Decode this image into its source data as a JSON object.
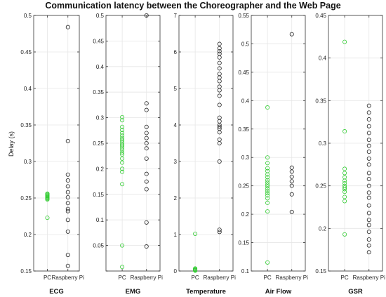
{
  "figure": {
    "title": "Communication latency between the Choreographer and the Web Page",
    "ylabel": "Delay (s)"
  },
  "colors": {
    "pc": "#33cc33",
    "pi": "#222222",
    "grid": "#e6e6e6",
    "axis": "#333333"
  },
  "chart_data": [
    {
      "type": "scatter",
      "title": "ECG",
      "categories": [
        "PC",
        "Raspberry Pi"
      ],
      "ylim": [
        0.15,
        0.5
      ],
      "yticks": [
        0.15,
        0.2,
        0.25,
        0.3,
        0.35,
        0.4,
        0.45,
        0.5
      ],
      "ytick_labels": [
        "0.15",
        "0.2",
        "0.25",
        "0.3",
        "0.35",
        "0.4",
        "0.45",
        "0.5"
      ],
      "grid": true,
      "series": [
        {
          "category": "PC",
          "values": [
            0.256,
            0.255,
            0.254,
            0.253,
            0.252,
            0.251,
            0.25,
            0.249,
            0.248,
            0.223
          ]
        },
        {
          "category": "Raspberry Pi",
          "values": [
            0.484,
            0.328,
            0.282,
            0.274,
            0.266,
            0.258,
            0.251,
            0.243,
            0.235,
            0.232,
            0.22,
            0.204,
            0.172,
            0.157
          ]
        }
      ]
    },
    {
      "type": "scatter",
      "title": "EMG",
      "categories": [
        "PC",
        "Raspberry Pi"
      ],
      "ylim": [
        0,
        0.5
      ],
      "yticks": [
        0,
        0.05,
        0.1,
        0.15,
        0.2,
        0.25,
        0.3,
        0.35,
        0.4,
        0.45,
        0.5
      ],
      "ytick_labels": [
        "",
        "0.05",
        "0.1",
        "0.15",
        "0.2",
        "0.25",
        "0.3",
        "0.35",
        "0.4",
        "0.45",
        "0.5"
      ],
      "grid": true,
      "series": [
        {
          "category": "PC",
          "values": [
            0.301,
            0.295,
            0.282,
            0.276,
            0.27,
            0.265,
            0.26,
            0.256,
            0.252,
            0.248,
            0.245,
            0.241,
            0.237,
            0.232,
            0.228,
            0.22,
            0.212,
            0.2,
            0.194,
            0.17,
            0.05,
            0.008
          ]
        },
        {
          "category": "Raspberry Pi",
          "values": [
            0.5,
            0.328,
            0.315,
            0.282,
            0.27,
            0.26,
            0.25,
            0.24,
            0.22,
            0.19,
            0.175,
            0.16,
            0.095,
            0.048
          ]
        }
      ]
    },
    {
      "type": "scatter",
      "title": "Temperature",
      "categories": [
        "PC",
        "Raspberry Pi"
      ],
      "ylim": [
        0,
        7
      ],
      "yticks": [
        0,
        1,
        2,
        3,
        4,
        5,
        6,
        7
      ],
      "ytick_labels": [
        "0",
        "1",
        "2",
        "3",
        "4",
        "5",
        "6",
        "7"
      ],
      "grid": true,
      "series": [
        {
          "category": "PC",
          "values": [
            1.02,
            0.07,
            0.05,
            0.04,
            0.03,
            0.02,
            0.01
          ]
        },
        {
          "category": "Raspberry Pi",
          "values": [
            6.22,
            6.1,
            6.02,
            5.95,
            5.85,
            5.7,
            5.55,
            5.4,
            5.3,
            5.2,
            5.05,
            4.95,
            4.8,
            4.55,
            4.2,
            4.1,
            4.0,
            3.95,
            3.9,
            3.8,
            3.6,
            3.5,
            3.0,
            1.13,
            1.07
          ]
        }
      ]
    },
    {
      "type": "scatter",
      "title": "Air Flow",
      "categories": [
        "PC",
        "Raspberry Pi"
      ],
      "ylim": [
        0.1,
        0.55
      ],
      "yticks": [
        0.1,
        0.15,
        0.2,
        0.25,
        0.3,
        0.35,
        0.4,
        0.45,
        0.5,
        0.55
      ],
      "ytick_labels": [
        "0.1",
        "0.15",
        "0.2",
        "0.25",
        "0.3",
        "0.35",
        "0.4",
        "0.45",
        "0.5",
        "0.55"
      ],
      "grid": true,
      "series": [
        {
          "category": "PC",
          "values": [
            0.388,
            0.3,
            0.29,
            0.281,
            0.276,
            0.27,
            0.265,
            0.26,
            0.256,
            0.252,
            0.249,
            0.245,
            0.241,
            0.237,
            0.233,
            0.228,
            0.22,
            0.205,
            0.115
          ]
        },
        {
          "category": "Raspberry Pi",
          "values": [
            0.517,
            0.282,
            0.275,
            0.266,
            0.258,
            0.25,
            0.235,
            0.204
          ]
        }
      ]
    },
    {
      "type": "scatter",
      "title": "GSR",
      "categories": [
        "PC",
        "Raspberry Pi"
      ],
      "ylim": [
        0.15,
        0.45
      ],
      "yticks": [
        0.15,
        0.2,
        0.25,
        0.3,
        0.35,
        0.4,
        0.45
      ],
      "ytick_labels": [
        "0.15",
        "0.2",
        "0.25",
        "0.3",
        "0.35",
        "0.4",
        "0.45"
      ],
      "grid": true,
      "series": [
        {
          "category": "PC",
          "values": [
            0.419,
            0.314,
            0.27,
            0.265,
            0.26,
            0.256,
            0.253,
            0.25,
            0.248,
            0.246,
            0.243,
            0.237,
            0.232,
            0.193
          ]
        },
        {
          "category": "Raspberry Pi",
          "values": [
            0.344,
            0.336,
            0.328,
            0.32,
            0.312,
            0.304,
            0.297,
            0.29,
            0.282,
            0.275,
            0.265,
            0.258,
            0.25,
            0.242,
            0.236,
            0.227,
            0.218,
            0.21,
            0.204,
            0.196,
            0.187,
            0.18,
            0.172
          ]
        }
      ]
    }
  ]
}
